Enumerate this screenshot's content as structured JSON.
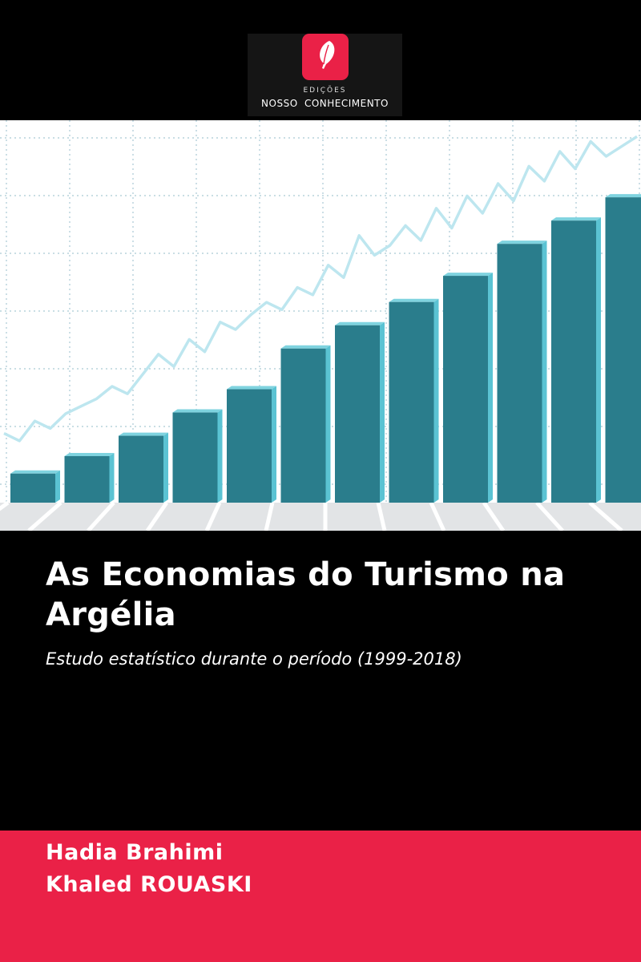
{
  "publisher": {
    "line1": "EDIÇÕES",
    "line2": "NOSSO CONHECIMENTO",
    "logo_icon": "quill-icon",
    "logo_color": "#ea2147"
  },
  "cover": {
    "title": "As Economias do Turismo na Argélia",
    "subtitle": "Estudo estatístico durante o período (1999-2018)"
  },
  "authors": [
    "Hadia Brahimi",
    "Khaled ROUASKI"
  ],
  "colors": {
    "background": "#000000",
    "accent": "#ea2147",
    "bar_front": "#2a7d8c",
    "bar_side": "#5bc3d3",
    "trend_line": "#bde6ef"
  },
  "chart_data": {
    "type": "bar",
    "values": [
      1,
      1.6,
      2.3,
      3.1,
      3.9,
      5.3,
      6.1,
      6.9,
      7.8,
      8.9,
      9.7,
      10.5
    ],
    "ylim": [
      0,
      11
    ],
    "trend": [
      2.8,
      2.5,
      3.3,
      3.0,
      3.6,
      3.9,
      4.2,
      4.7,
      4.4,
      5.2,
      6.0,
      5.5,
      6.6,
      6.1,
      7.3,
      7.0,
      7.6,
      8.1,
      7.8,
      8.7,
      8.4,
      9.6,
      9.1,
      10.8,
      10.0,
      10.4,
      11.2,
      10.6,
      11.9,
      11.1,
      12.4,
      11.7,
      12.9,
      12.2,
      13.6,
      13.0,
      14.2,
      13.5,
      14.6,
      14.0,
      14.4,
      14.8
    ],
    "grid": true
  }
}
